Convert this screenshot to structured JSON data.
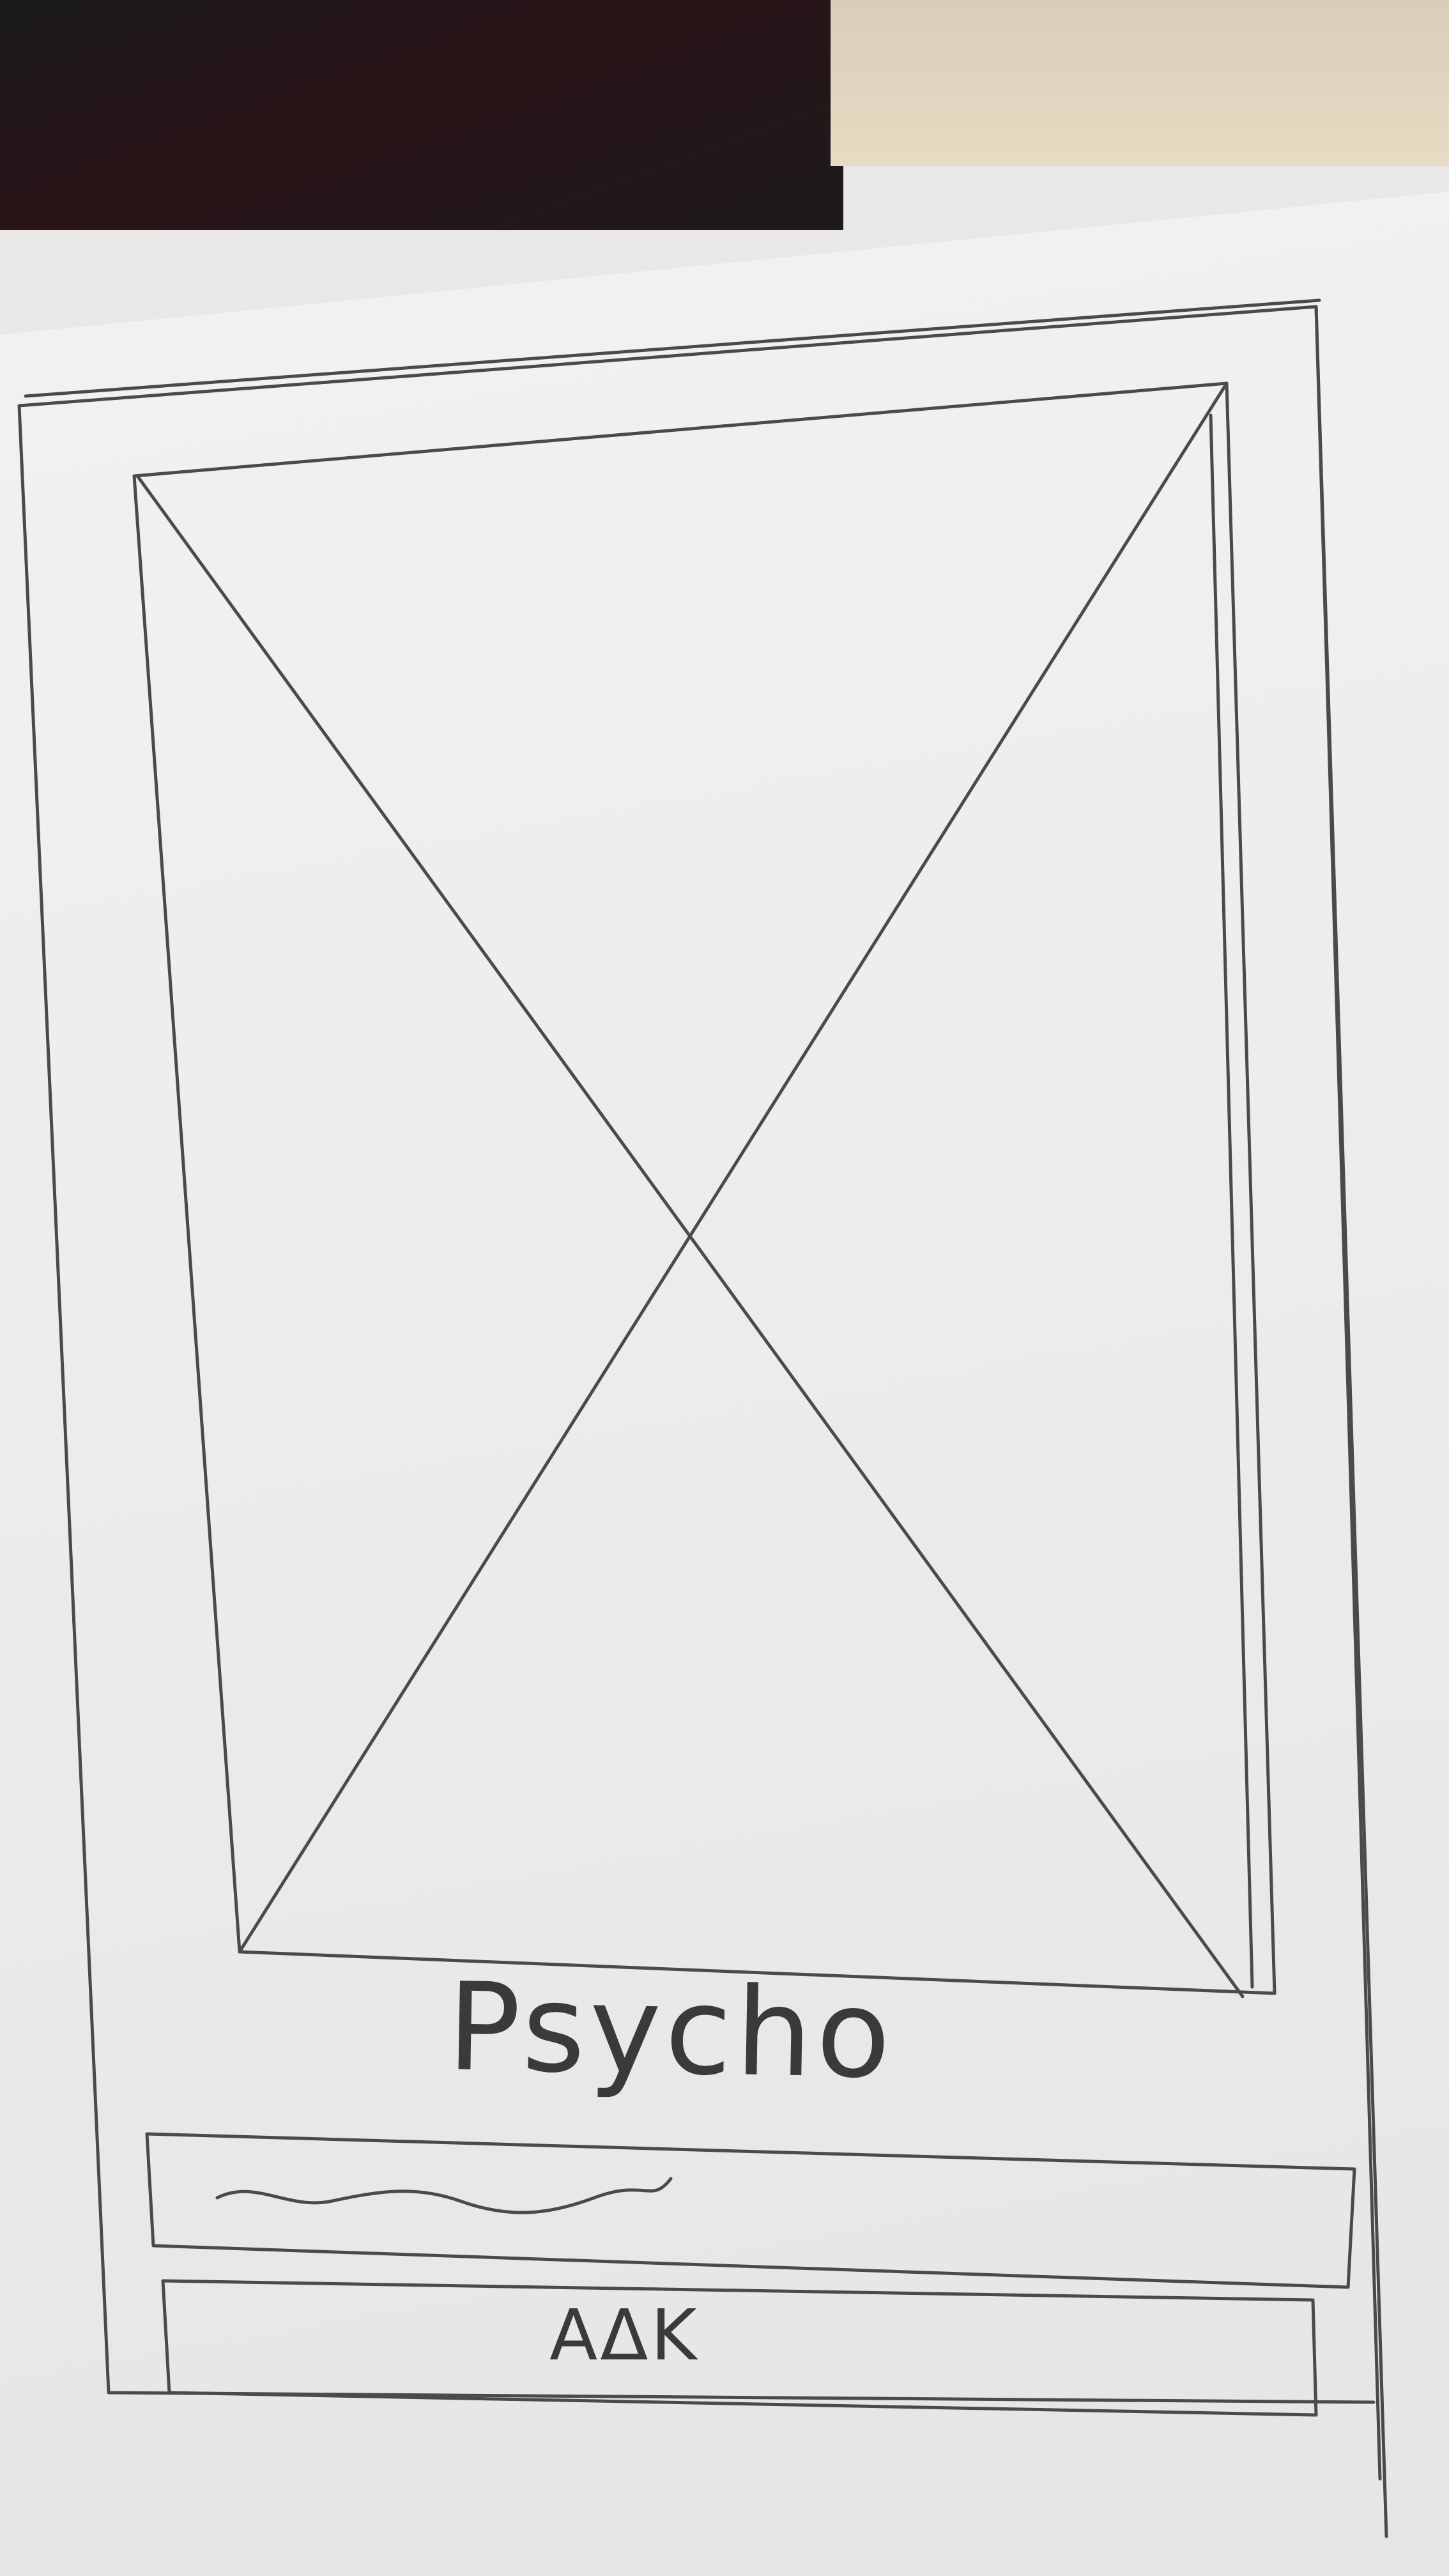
{
  "movie": {
    "title": "Psycho",
    "image_placeholder": "image-placeholder"
  },
  "search_field": {
    "value": ""
  },
  "add_button": {
    "label": "AΔK"
  },
  "colors": {
    "paper": "#ecedee",
    "pencil": "#4b4a48"
  }
}
